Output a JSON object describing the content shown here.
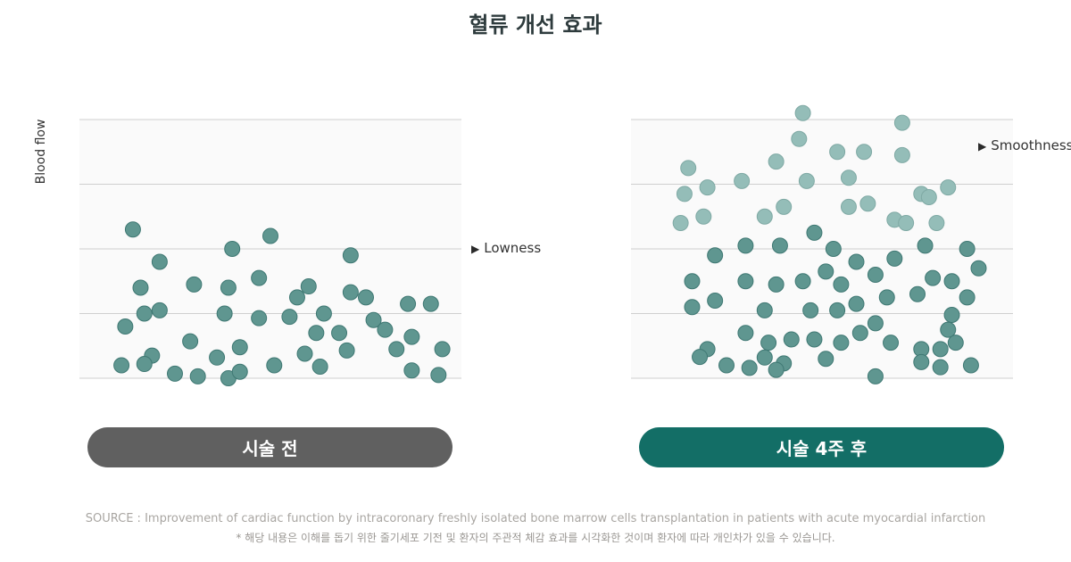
{
  "title": "혈류 개선 효과",
  "source": "SOURCE : Improvement of cardiac function by intracoronary freshly isolated bone marrow cells transplantation in patients with acute myocardial infarction",
  "note": "* 해당 내용은 이해를 돕기 위한 줄기세포 기전 및 환자의 주관적 체감 효과를 시각화한 것이며 환자에 따라 개인차가 있을 수 있습니다.",
  "colors": {
    "dot_before": "#5f9690",
    "dot_after": "#5f9690",
    "dot_after_light": "#94bdb8",
    "pill_before": "#606060",
    "pill_after": "#136e66"
  },
  "chart_data": [
    {
      "type": "scatter",
      "ylabel": "Blood flow",
      "label": "시술 전",
      "annotation": "Lowness",
      "ylim": [
        0,
        4
      ],
      "gridlines": 5,
      "points": [
        [
          0.14,
          2.3
        ],
        [
          0.21,
          1.8
        ],
        [
          0.16,
          1.4
        ],
        [
          0.17,
          1.0
        ],
        [
          0.21,
          1.05
        ],
        [
          0.3,
          1.45
        ],
        [
          0.4,
          2.0
        ],
        [
          0.5,
          2.2
        ],
        [
          0.39,
          1.4
        ],
        [
          0.47,
          1.55
        ],
        [
          0.38,
          1.0
        ],
        [
          0.47,
          0.93
        ],
        [
          0.55,
          0.95
        ],
        [
          0.57,
          1.25
        ],
        [
          0.6,
          1.42
        ],
        [
          0.64,
          1.0
        ],
        [
          0.71,
          1.9
        ],
        [
          0.71,
          1.33
        ],
        [
          0.75,
          1.25
        ],
        [
          0.86,
          1.15
        ],
        [
          0.77,
          0.9
        ],
        [
          0.62,
          0.7
        ],
        [
          0.68,
          0.7
        ],
        [
          0.8,
          0.75
        ],
        [
          0.87,
          0.64
        ],
        [
          0.19,
          0.35
        ],
        [
          0.17,
          0.22
        ],
        [
          0.29,
          0.57
        ],
        [
          0.36,
          0.32
        ],
        [
          0.42,
          0.48
        ],
        [
          0.25,
          0.07
        ],
        [
          0.31,
          0.03
        ],
        [
          0.39,
          0.0
        ],
        [
          0.42,
          0.1
        ],
        [
          0.51,
          0.2
        ],
        [
          0.59,
          0.38
        ],
        [
          0.7,
          0.43
        ],
        [
          0.63,
          0.18
        ],
        [
          0.83,
          0.45
        ],
        [
          0.87,
          0.12
        ],
        [
          0.94,
          0.05
        ],
        [
          0.95,
          0.45
        ],
        [
          0.92,
          1.15
        ],
        [
          0.12,
          0.8
        ],
        [
          0.11,
          0.2
        ]
      ]
    },
    {
      "type": "scatter",
      "label": "시술 4주 후",
      "annotation": "Smoothness",
      "ylim": [
        0,
        4
      ],
      "gridlines": 5,
      "points": [
        [
          0.45,
          4.1
        ],
        [
          0.71,
          3.95
        ],
        [
          0.44,
          3.7
        ],
        [
          0.54,
          3.5
        ],
        [
          0.61,
          3.5
        ],
        [
          0.15,
          3.25
        ],
        [
          0.38,
          3.35
        ],
        [
          0.71,
          3.45
        ],
        [
          0.14,
          2.85
        ],
        [
          0.2,
          2.95
        ],
        [
          0.29,
          3.05
        ],
        [
          0.46,
          3.05
        ],
        [
          0.57,
          3.1
        ],
        [
          0.76,
          2.85
        ],
        [
          0.83,
          2.95
        ],
        [
          0.13,
          2.4
        ],
        [
          0.19,
          2.5
        ],
        [
          0.35,
          2.5
        ],
        [
          0.4,
          2.65
        ],
        [
          0.57,
          2.65
        ],
        [
          0.62,
          2.7
        ],
        [
          0.69,
          2.45
        ],
        [
          0.72,
          2.4
        ],
        [
          0.78,
          2.8
        ],
        [
          0.8,
          2.4
        ],
        [
          0.48,
          2.25
        ],
        [
          0.3,
          2.05
        ],
        [
          0.39,
          2.05
        ],
        [
          0.53,
          2.0
        ],
        [
          0.88,
          2.0
        ],
        [
          0.22,
          1.9
        ],
        [
          0.16,
          1.5
        ],
        [
          0.3,
          1.5
        ],
        [
          0.38,
          1.45
        ],
        [
          0.45,
          1.5
        ],
        [
          0.51,
          1.65
        ],
        [
          0.55,
          1.45
        ],
        [
          0.59,
          1.8
        ],
        [
          0.64,
          1.6
        ],
        [
          0.69,
          1.85
        ],
        [
          0.77,
          2.05
        ],
        [
          0.79,
          1.55
        ],
        [
          0.84,
          1.5
        ],
        [
          0.16,
          1.1
        ],
        [
          0.22,
          1.2
        ],
        [
          0.35,
          1.05
        ],
        [
          0.47,
          1.05
        ],
        [
          0.54,
          1.05
        ],
        [
          0.59,
          1.15
        ],
        [
          0.67,
          1.25
        ],
        [
          0.75,
          1.3
        ],
        [
          0.84,
          0.98
        ],
        [
          0.6,
          0.7
        ],
        [
          0.64,
          0.85
        ],
        [
          0.83,
          0.75
        ],
        [
          0.3,
          0.7
        ],
        [
          0.36,
          0.55
        ],
        [
          0.42,
          0.6
        ],
        [
          0.48,
          0.6
        ],
        [
          0.55,
          0.55
        ],
        [
          0.68,
          0.55
        ],
        [
          0.76,
          0.45
        ],
        [
          0.81,
          0.45
        ],
        [
          0.2,
          0.45
        ],
        [
          0.18,
          0.33
        ],
        [
          0.25,
          0.2
        ],
        [
          0.31,
          0.16
        ],
        [
          0.35,
          0.32
        ],
        [
          0.4,
          0.23
        ],
        [
          0.38,
          0.13
        ],
        [
          0.51,
          0.3
        ],
        [
          0.64,
          0.03
        ],
        [
          0.76,
          0.25
        ],
        [
          0.81,
          0.17
        ],
        [
          0.88,
          1.25
        ],
        [
          0.85,
          0.55
        ],
        [
          0.89,
          0.2
        ],
        [
          0.91,
          1.7
        ]
      ]
    }
  ],
  "lightThreshold": 2.35
}
